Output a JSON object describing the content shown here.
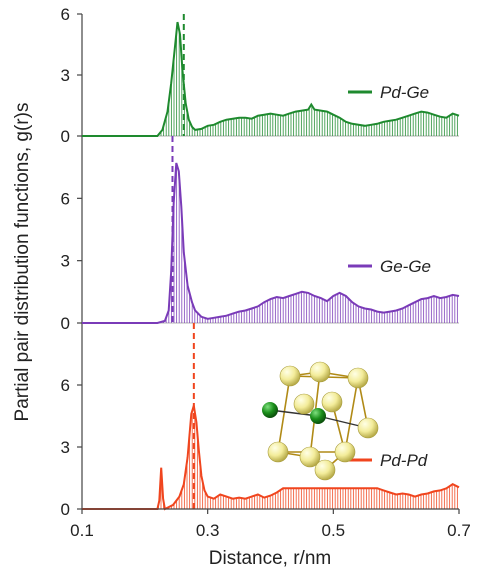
{
  "chart_data": {
    "type": "line",
    "xlabel": "Distance, r/nm",
    "ylabel": "Partial pair distribution functions, g(r)s",
    "xlim": [
      0.1,
      0.7
    ],
    "xticks": [
      "0.1",
      "0.3",
      "0.5",
      "0.7"
    ],
    "panels": [
      {
        "name": "Pd-Ge",
        "color": "#1e8a2e",
        "ylim": [
          0,
          6
        ],
        "yticks": [
          "0",
          "3",
          "6"
        ],
        "peak_marker_x": 0.262,
        "x": [
          0.1,
          0.22,
          0.228,
          0.236,
          0.242,
          0.248,
          0.252,
          0.256,
          0.26,
          0.265,
          0.27,
          0.275,
          0.28,
          0.29,
          0.3,
          0.31,
          0.32,
          0.33,
          0.34,
          0.35,
          0.36,
          0.37,
          0.38,
          0.39,
          0.4,
          0.41,
          0.42,
          0.43,
          0.44,
          0.45,
          0.46,
          0.465,
          0.47,
          0.48,
          0.49,
          0.5,
          0.51,
          0.52,
          0.53,
          0.54,
          0.55,
          0.56,
          0.57,
          0.58,
          0.59,
          0.6,
          0.61,
          0.62,
          0.63,
          0.64,
          0.65,
          0.66,
          0.67,
          0.68,
          0.69,
          0.7
        ],
        "y": [
          0,
          0,
          0.3,
          1.2,
          2.6,
          4.4,
          5.6,
          5.0,
          3.2,
          1.6,
          0.8,
          0.45,
          0.3,
          0.35,
          0.5,
          0.55,
          0.7,
          0.8,
          0.85,
          0.9,
          0.9,
          0.85,
          1.0,
          1.05,
          1.1,
          1.05,
          1.0,
          1.1,
          1.2,
          1.25,
          1.3,
          1.55,
          1.3,
          1.25,
          1.2,
          1.05,
          0.9,
          0.7,
          0.6,
          0.55,
          0.5,
          0.55,
          0.6,
          0.7,
          0.75,
          0.8,
          0.9,
          1.0,
          1.1,
          1.2,
          1.15,
          1.05,
          0.95,
          0.9,
          1.1,
          1.0
        ]
      },
      {
        "name": "Ge-Ge",
        "color": "#7a3bb8",
        "ylim": [
          0,
          9
        ],
        "yticks": [
          "0",
          "3",
          "6"
        ],
        "peak_marker_x": 0.244,
        "x": [
          0.1,
          0.22,
          0.232,
          0.238,
          0.242,
          0.246,
          0.25,
          0.254,
          0.258,
          0.262,
          0.268,
          0.275,
          0.28,
          0.29,
          0.3,
          0.31,
          0.32,
          0.33,
          0.34,
          0.35,
          0.36,
          0.37,
          0.38,
          0.39,
          0.4,
          0.41,
          0.42,
          0.43,
          0.44,
          0.45,
          0.46,
          0.47,
          0.48,
          0.49,
          0.5,
          0.51,
          0.52,
          0.53,
          0.54,
          0.55,
          0.56,
          0.57,
          0.58,
          0.59,
          0.6,
          0.61,
          0.62,
          0.63,
          0.64,
          0.65,
          0.66,
          0.67,
          0.68,
          0.69,
          0.7
        ],
        "y": [
          0,
          0,
          0.1,
          0.6,
          2.5,
          5.8,
          7.7,
          7.3,
          5.6,
          3.4,
          1.8,
          1.0,
          0.6,
          0.3,
          0.2,
          0.25,
          0.3,
          0.35,
          0.45,
          0.55,
          0.6,
          0.7,
          0.8,
          1.0,
          1.15,
          1.25,
          1.2,
          1.3,
          1.4,
          1.5,
          1.45,
          1.3,
          1.2,
          1.05,
          1.3,
          1.45,
          1.3,
          1.0,
          0.8,
          0.7,
          0.65,
          0.55,
          0.5,
          0.55,
          0.6,
          0.7,
          0.85,
          1.0,
          1.15,
          1.2,
          1.3,
          1.2,
          1.25,
          1.35,
          1.3
        ]
      },
      {
        "name": "Pd-Pd",
        "color": "#f0451e",
        "ylim": [
          0,
          9
        ],
        "yticks": [
          "0",
          "3",
          "6"
        ],
        "peak_marker_x": 0.278,
        "x": [
          0.1,
          0.22,
          0.223,
          0.226,
          0.229,
          0.232,
          0.245,
          0.255,
          0.262,
          0.268,
          0.274,
          0.278,
          0.282,
          0.286,
          0.29,
          0.295,
          0.3,
          0.31,
          0.32,
          0.33,
          0.34,
          0.35,
          0.36,
          0.37,
          0.38,
          0.39,
          0.4,
          0.41,
          0.42,
          0.43,
          0.44,
          0.45,
          0.46,
          0.47,
          0.48,
          0.49,
          0.5,
          0.51,
          0.52,
          0.53,
          0.54,
          0.55,
          0.56,
          0.57,
          0.58,
          0.59,
          0.6,
          0.61,
          0.62,
          0.63,
          0.64,
          0.65,
          0.66,
          0.67,
          0.68,
          0.69,
          0.7
        ],
        "y": [
          0,
          0,
          0.4,
          2.0,
          0.5,
          0,
          0.2,
          0.6,
          1.2,
          2.5,
          4.6,
          5.0,
          4.2,
          2.8,
          1.6,
          0.9,
          0.6,
          0.5,
          0.7,
          0.6,
          0.5,
          0.55,
          0.5,
          0.6,
          0.7,
          0.55,
          0.65,
          0.8,
          1.0,
          1.0,
          1.0,
          1.0,
          1.0,
          1.0,
          1.0,
          1.0,
          1.0,
          1.0,
          1.0,
          1.0,
          1.0,
          1.0,
          1.0,
          1.0,
          0.9,
          0.8,
          0.7,
          0.75,
          0.7,
          0.6,
          0.7,
          0.75,
          0.85,
          0.9,
          1.0,
          1.2,
          1.05
        ]
      }
    ],
    "inset": "PdGe unit-cell structure: yellow Pd atoms and green Ge atoms linked by bonds"
  }
}
